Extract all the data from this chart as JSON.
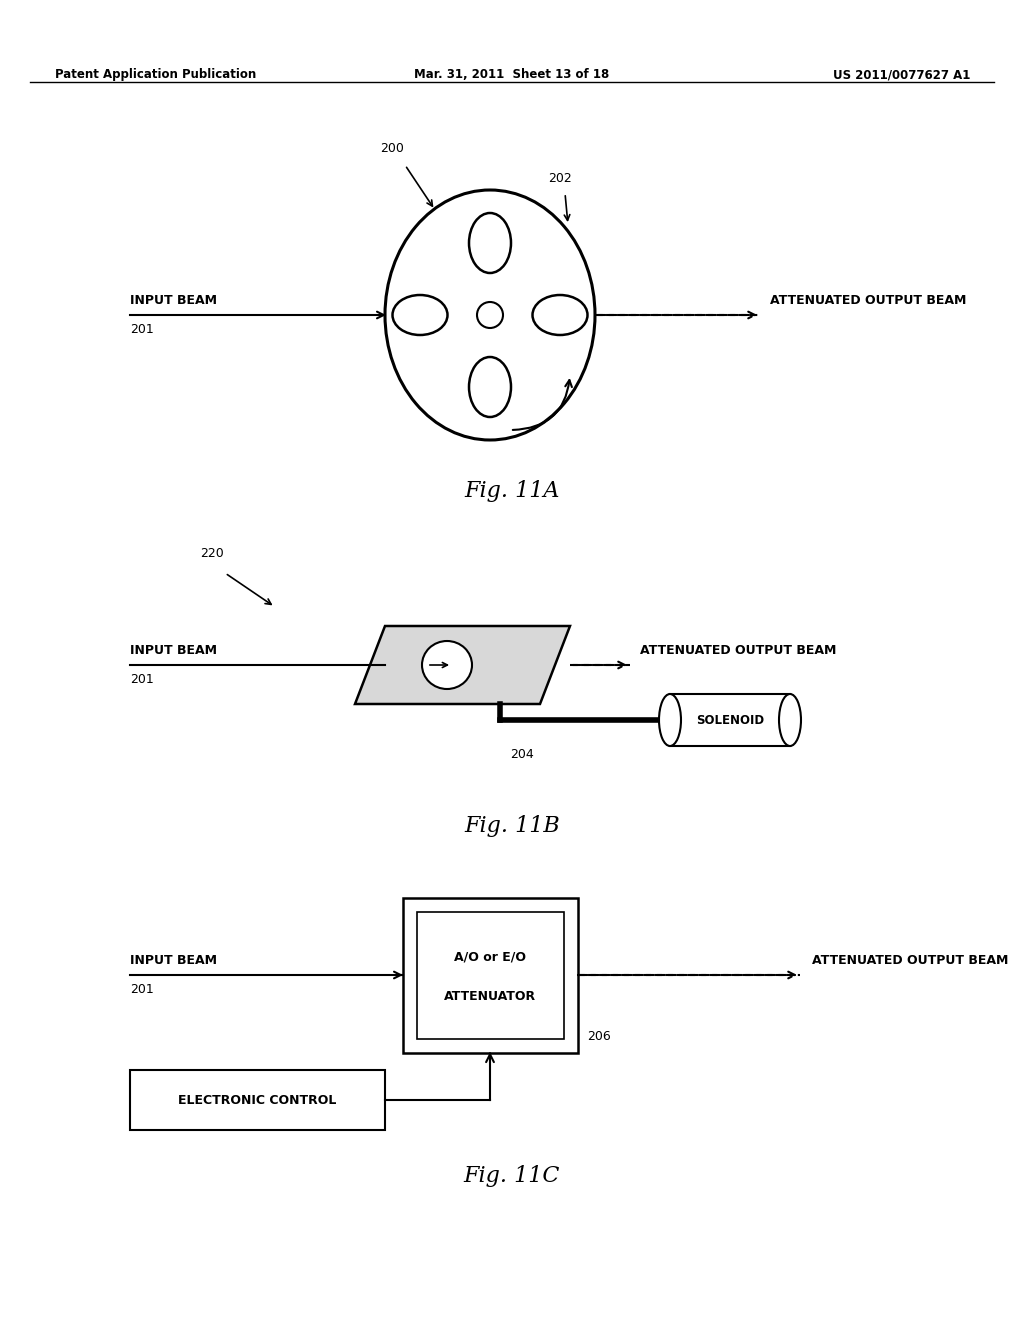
{
  "background_color": "#ffffff",
  "header_left": "Patent Application Publication",
  "header_mid": "Mar. 31, 2011  Sheet 13 of 18",
  "header_right": "US 2011/0077627 A1",
  "fig_A_label": "Fig. 11A",
  "fig_B_label": "Fig. 11B",
  "fig_C_label": "Fig. 11C",
  "text_input_beam": "INPUT BEAM",
  "text_output_beam": "ATTENUATED OUTPUT BEAM",
  "text_201": "201",
  "text_200": "200",
  "text_202": "202",
  "text_220": "220",
  "text_204": "204",
  "text_206": "206",
  "text_solenoid": "SOLENOID",
  "text_ao_eo": "A/O or E/O",
  "text_attenuator": "ATTENUATOR",
  "text_elec_ctrl": "ELECTRONIC CONTROL"
}
